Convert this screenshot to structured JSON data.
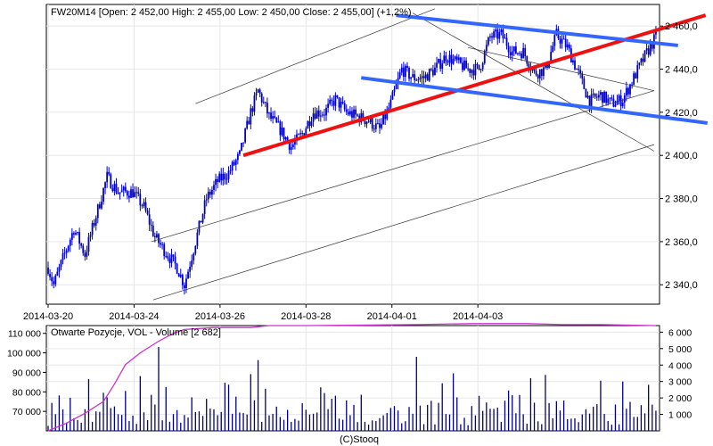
{
  "chart_data": [
    {
      "type": "candlestick",
      "title": "FW20M14 [Open: 2 452,00  High: 2 455,00  Low: 2 450,00  Close: 2 455,00] (+1,2%)",
      "x_tick_labels": [
        "2014-03-20",
        "2014-03-24",
        "2014-03-26",
        "2014-03-28",
        "2014-04-01",
        "2014-04-03"
      ],
      "y_tick_labels": [
        "2 340,0",
        "2 360,0",
        "2 380,0",
        "2 400,0",
        "2 420,0",
        "2 440,0",
        "2 460,0"
      ],
      "y_ticks": [
        2340,
        2360,
        2380,
        2400,
        2420,
        2440,
        2460
      ],
      "ylim": [
        2331,
        2470
      ],
      "y_axis_side": "right",
      "colors": {
        "candles": "#0000cc",
        "trend_red": "#ee1111",
        "trend_blue": "#3366ff",
        "channel": "#333333",
        "background": "#ffffff"
      },
      "keypoints": [
        [
          0,
          2348
        ],
        [
          3,
          2340
        ],
        [
          8,
          2352
        ],
        [
          14,
          2366
        ],
        [
          20,
          2354
        ],
        [
          26,
          2372
        ],
        [
          32,
          2390
        ],
        [
          38,
          2383
        ],
        [
          46,
          2383
        ],
        [
          52,
          2376
        ],
        [
          58,
          2362
        ],
        [
          64,
          2355
        ],
        [
          70,
          2348
        ],
        [
          74,
          2340
        ],
        [
          80,
          2360
        ],
        [
          86,
          2380
        ],
        [
          92,
          2388
        ],
        [
          98,
          2392
        ],
        [
          104,
          2400
        ],
        [
          110,
          2420
        ],
        [
          114,
          2430
        ],
        [
          120,
          2418
        ],
        [
          126,
          2412
        ],
        [
          132,
          2404
        ],
        [
          138,
          2410
        ],
        [
          144,
          2420
        ],
        [
          150,
          2420
        ],
        [
          156,
          2426
        ],
        [
          162,
          2420
        ],
        [
          168,
          2418
        ],
        [
          174,
          2416
        ],
        [
          180,
          2412
        ],
        [
          186,
          2424
        ],
        [
          192,
          2440
        ],
        [
          198,
          2436
        ],
        [
          204,
          2436
        ],
        [
          210,
          2440
        ],
        [
          216,
          2446
        ],
        [
          222,
          2443
        ],
        [
          228,
          2440
        ],
        [
          234,
          2440
        ],
        [
          240,
          2455
        ],
        [
          246,
          2456
        ],
        [
          252,
          2448
        ],
        [
          258,
          2448
        ],
        [
          264,
          2438
        ],
        [
          270,
          2440
        ],
        [
          276,
          2456
        ],
        [
          282,
          2450
        ],
        [
          288,
          2438
        ],
        [
          294,
          2425
        ],
        [
          300,
          2428
        ],
        [
          306,
          2424
        ],
        [
          312,
          2426
        ],
        [
          318,
          2436
        ],
        [
          324,
          2446
        ],
        [
          330,
          2455
        ]
      ],
      "trend_lines": [
        {
          "color": "red",
          "from": [
            106,
            2400
          ],
          "to": [
            357,
            2465
          ]
        },
        {
          "color": "blue",
          "from": [
            189,
            2465
          ],
          "to": [
            342,
            2451
          ]
        },
        {
          "color": "blue",
          "from": [
            170,
            2436
          ],
          "to": [
            358,
            2415
          ]
        }
      ],
      "channel_lines": [
        {
          "from": [
            80,
            2424
          ],
          "to": [
            210,
            2468
          ]
        },
        {
          "from": [
            56,
            2360
          ],
          "to": [
            329,
            2430
          ]
        },
        {
          "from": [
            57,
            2333
          ],
          "to": [
            329,
            2405
          ]
        },
        {
          "from": [
            198,
            2466
          ],
          "to": [
            329,
            2402
          ]
        },
        {
          "from": [
            228,
            2450
          ],
          "to": [
            329,
            2430
          ]
        }
      ]
    },
    {
      "type": "bar+line",
      "title": "Otwarte Pozycje, VOL - Volume [2 682]",
      "left_axis_labels": [
        "70 000",
        "80 000",
        "90 000",
        "100 000",
        "110 000"
      ],
      "left_axis_ticks": [
        70000,
        80000,
        90000,
        100000,
        110000
      ],
      "left_ylim": [
        60000,
        114000
      ],
      "right_axis_labels": [
        "1 000",
        "2 000",
        "3 000",
        "4 000",
        "5 000",
        "6 000"
      ],
      "right_axis_ticks": [
        1000,
        2000,
        3000,
        4000,
        5000,
        6000
      ],
      "right_ylim": [
        0,
        6400
      ],
      "colors": {
        "volume_bars": "#000080",
        "open_interest": "#cc33cc"
      },
      "open_interest_keypoints": [
        [
          0,
          60000
        ],
        [
          10,
          64000
        ],
        [
          20,
          69000
        ],
        [
          30,
          75000
        ],
        [
          36,
          84000
        ],
        [
          42,
          94000
        ],
        [
          50,
          100000
        ],
        [
          60,
          106000
        ],
        [
          68,
          110000
        ],
        [
          74,
          112000
        ],
        [
          82,
          112500
        ],
        [
          90,
          113000
        ],
        [
          110,
          113000
        ],
        [
          120,
          114000
        ],
        [
          140,
          114000
        ],
        [
          200,
          114500
        ],
        [
          230,
          115000
        ],
        [
          260,
          115000
        ],
        [
          280,
          114500
        ],
        [
          300,
          114500
        ],
        [
          330,
          114000
        ]
      ],
      "volume_spikes": [
        [
          60,
          5100
        ],
        [
          114,
          4300
        ],
        [
          201,
          4500
        ],
        [
          220,
          3500
        ],
        [
          262,
          3200
        ],
        [
          271,
          3400
        ],
        [
          313,
          3000
        ],
        [
          326,
          2800
        ]
      ]
    }
  ],
  "footer": {
    "credit": "(C)Stooq"
  }
}
